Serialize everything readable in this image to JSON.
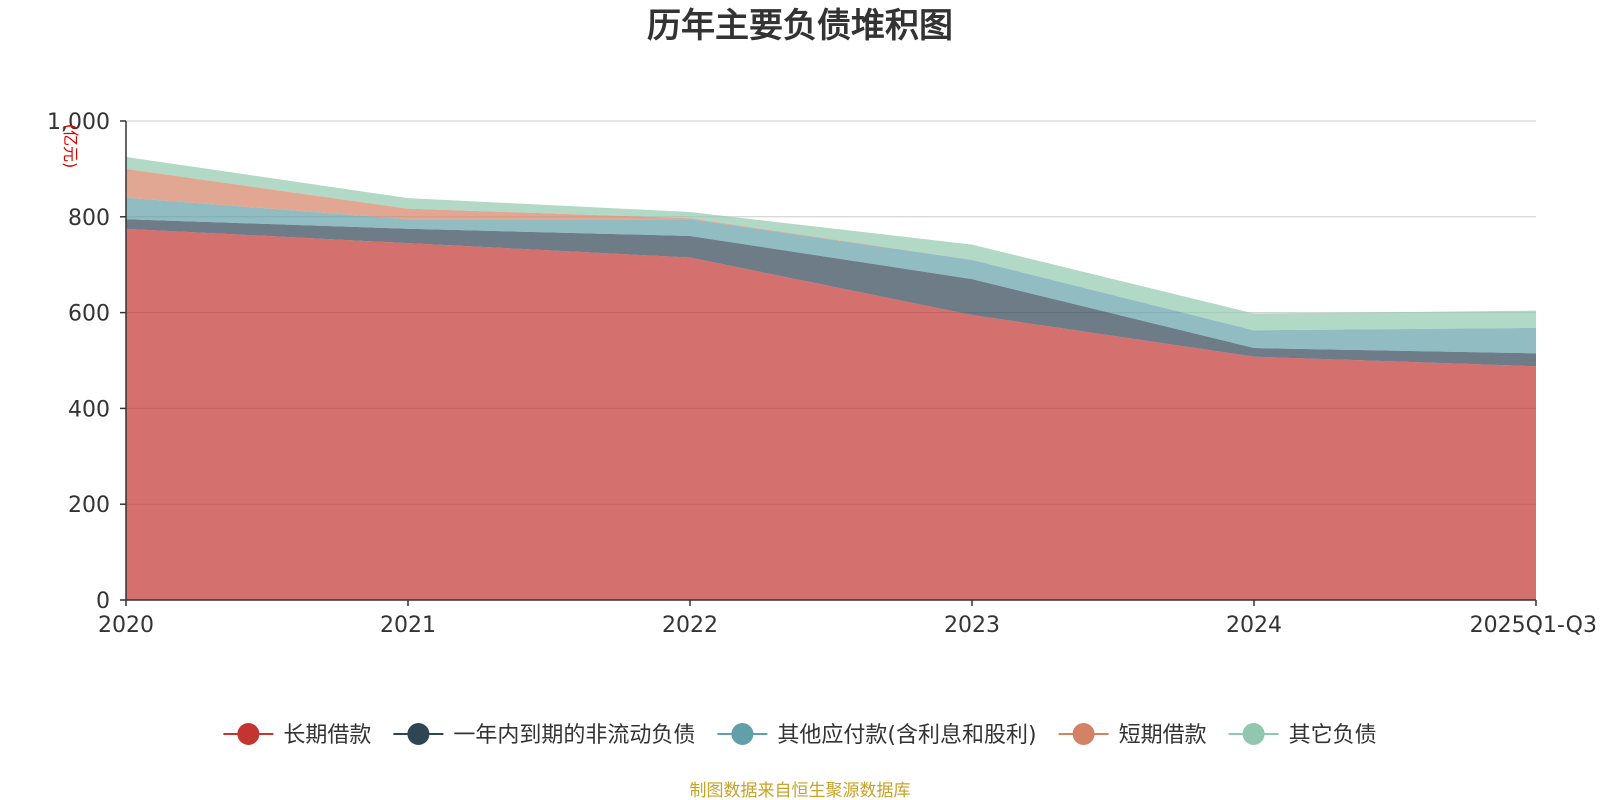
{
  "chart_data": {
    "type": "area",
    "stacked": true,
    "title": "历年主要负债堆积图",
    "unit_label": "(亿元)",
    "x": [
      "2020",
      "2021",
      "2022",
      "2023",
      "2024",
      "2025Q1-Q3"
    ],
    "yticks": [
      "0",
      "200",
      "400",
      "600",
      "800",
      "1,000"
    ],
    "ylim": [
      0,
      1000
    ],
    "grid": true,
    "legend_position": "bottom",
    "series": [
      {
        "name": "长期借款",
        "color": "#c23531",
        "values": [
          775,
          745,
          715,
          595,
          508,
          488
        ]
      },
      {
        "name": "一年内到期的非流动负债",
        "color": "#2f4554",
        "values": [
          20,
          30,
          45,
          75,
          18,
          27
        ]
      },
      {
        "name": "其他应付款(含利息和股利)",
        "color": "#61a0a8",
        "values": [
          45,
          20,
          35,
          40,
          37,
          53
        ]
      },
      {
        "name": "短期借款",
        "color": "#d48265",
        "values": [
          60,
          22,
          2,
          0,
          0,
          0
        ]
      },
      {
        "name": "其它负债",
        "color": "#91c7ae",
        "values": [
          25,
          22,
          13,
          32,
          35,
          36
        ]
      }
    ],
    "source": "制图数据来自恒生聚源数据库"
  }
}
